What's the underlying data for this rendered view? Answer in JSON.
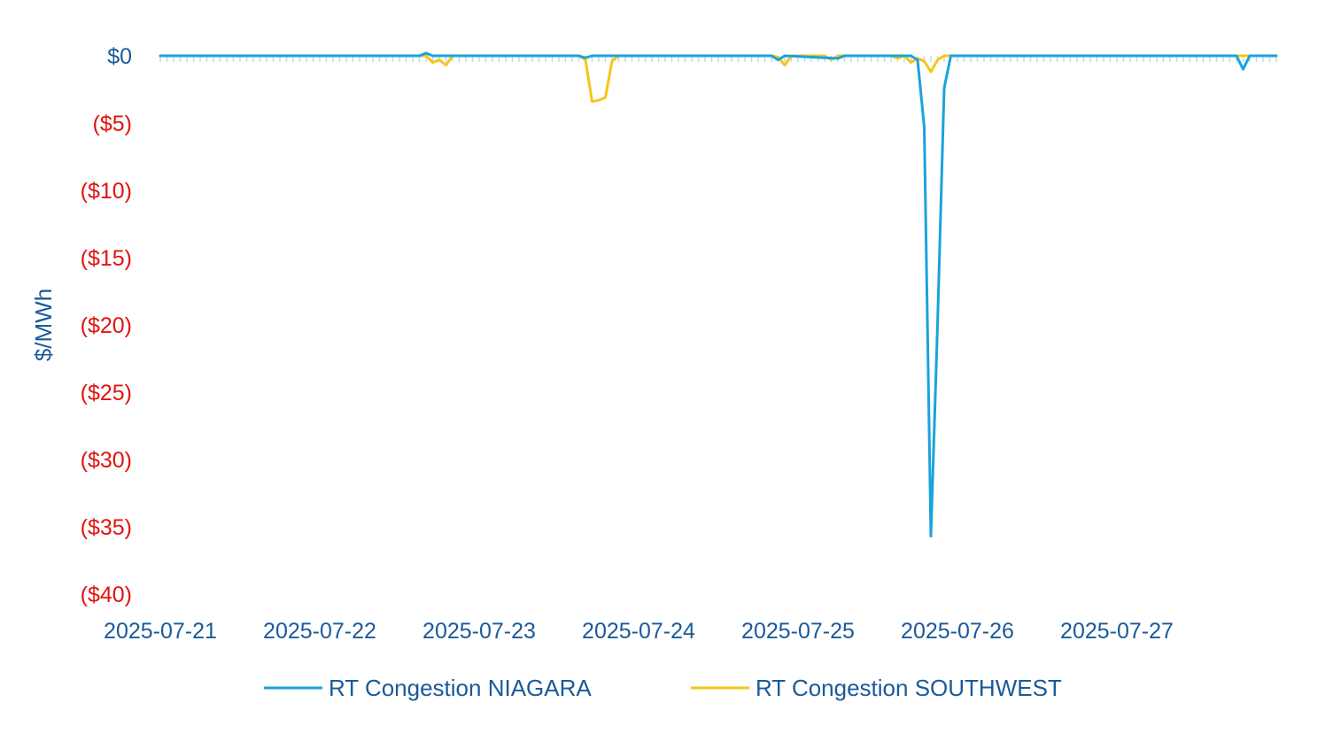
{
  "colors": {
    "niagara": "#1aa3db",
    "southwest": "#f5c518",
    "axis_text": "#1a5a9a",
    "negative_text": "#e0140f",
    "zero_grid": "#b6dcef"
  },
  "chart_data": {
    "type": "line",
    "title": "",
    "xlabel": "",
    "ylabel": "$/MWh",
    "ylim": [
      -40,
      0
    ],
    "grid": false,
    "legend_position": "bottom",
    "x_tick_labels": [
      "2025-07-21",
      "2025-07-22",
      "2025-07-23",
      "2025-07-24",
      "2025-07-25",
      "2025-07-26",
      "2025-07-27"
    ],
    "y_ticks": [
      {
        "value": 0,
        "label": "$0"
      },
      {
        "value": -5,
        "label": "($5)"
      },
      {
        "value": -10,
        "label": "($10)"
      },
      {
        "value": -15,
        "label": "($15)"
      },
      {
        "value": -20,
        "label": "($20)"
      },
      {
        "value": -25,
        "label": "($25)"
      },
      {
        "value": -30,
        "label": "($30)"
      },
      {
        "value": -35,
        "label": "($35)"
      },
      {
        "value": -40,
        "label": "($40)"
      }
    ],
    "x_range": [
      "2025-07-21 00:00",
      "2025-07-28 00:00"
    ],
    "series": [
      {
        "name": "RT Congestion NIAGARA",
        "color": "#1aa3db",
        "points": [
          [
            "2025-07-21 00:00",
            0
          ],
          [
            "2025-07-22 15:00",
            0
          ],
          [
            "2025-07-22 16:00",
            0.2
          ],
          [
            "2025-07-22 17:00",
            0
          ],
          [
            "2025-07-23 15:00",
            0
          ],
          [
            "2025-07-23 16:00",
            -0.15
          ],
          [
            "2025-07-23 17:00",
            0
          ],
          [
            "2025-07-24 20:00",
            0
          ],
          [
            "2025-07-24 21:00",
            -0.3
          ],
          [
            "2025-07-24 22:00",
            0
          ],
          [
            "2025-07-25 06:00",
            -0.2
          ],
          [
            "2025-07-25 07:00",
            0
          ],
          [
            "2025-07-25 17:00",
            0
          ],
          [
            "2025-07-25 18:00",
            -0.3
          ],
          [
            "2025-07-25 19:00",
            -5.3
          ],
          [
            "2025-07-25 20:00",
            -35.7
          ],
          [
            "2025-07-25 21:00",
            -20
          ],
          [
            "2025-07-25 22:00",
            -2.4
          ],
          [
            "2025-07-25 23:00",
            0
          ],
          [
            "2025-07-27 18:00",
            0
          ],
          [
            "2025-07-27 19:00",
            -1
          ],
          [
            "2025-07-27 20:00",
            0
          ],
          [
            "2025-07-28 00:00",
            0
          ]
        ]
      },
      {
        "name": "RT Congestion SOUTHWEST",
        "color": "#f5c518",
        "points": [
          [
            "2025-07-21 00:00",
            0
          ],
          [
            "2025-07-22 16:00",
            0
          ],
          [
            "2025-07-22 17:00",
            -0.5
          ],
          [
            "2025-07-22 18:00",
            -0.3
          ],
          [
            "2025-07-22 19:00",
            -0.7
          ],
          [
            "2025-07-22 20:00",
            0
          ],
          [
            "2025-07-23 15:00",
            0
          ],
          [
            "2025-07-23 16:00",
            -0.3
          ],
          [
            "2025-07-23 17:00",
            -3.4
          ],
          [
            "2025-07-23 18:00",
            -3.3
          ],
          [
            "2025-07-23 19:00",
            -3.1
          ],
          [
            "2025-07-23 20:00",
            -0.4
          ],
          [
            "2025-07-23 21:00",
            0
          ],
          [
            "2025-07-24 20:00",
            0
          ],
          [
            "2025-07-24 21:00",
            -0.1
          ],
          [
            "2025-07-24 22:00",
            -0.7
          ],
          [
            "2025-07-24 23:00",
            0
          ],
          [
            "2025-07-25 04:00",
            0
          ],
          [
            "2025-07-25 05:00",
            -0.3
          ],
          [
            "2025-07-25 06:00",
            0
          ],
          [
            "2025-07-25 14:00",
            0
          ],
          [
            "2025-07-25 15:00",
            -0.2
          ],
          [
            "2025-07-25 16:00",
            0
          ],
          [
            "2025-07-25 17:00",
            -0.5
          ],
          [
            "2025-07-25 18:00",
            -0.2
          ],
          [
            "2025-07-25 19:00",
            -0.4
          ],
          [
            "2025-07-25 20:00",
            -1.2
          ],
          [
            "2025-07-25 21:00",
            -0.3
          ],
          [
            "2025-07-25 22:00",
            0
          ],
          [
            "2025-07-28 00:00",
            0
          ]
        ]
      }
    ]
  }
}
